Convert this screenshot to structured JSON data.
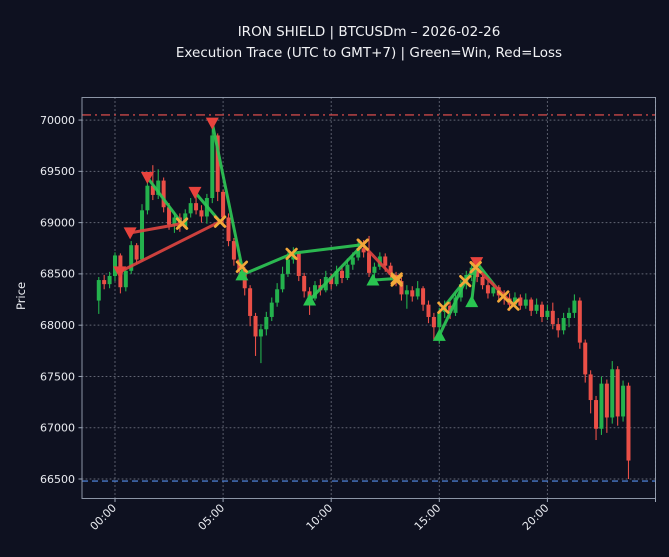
{
  "header": {
    "title": "IRON SHIELD | BTCUSDm – 2026-02-26",
    "subtitle": "Execution Trace (UTC to GMT+7) | Green=Win, Red=Loss"
  },
  "chart_data": {
    "type": "candlestick",
    "title": "IRON SHIELD | BTCUSDm – 2026-02-26",
    "subtitle": "Execution Trace (UTC to GMT+7) | Green=Win, Red=Loss",
    "ylabel": "Price",
    "xlabel": "",
    "xlim": [
      -1.526,
      25.0
    ],
    "ylim": [
      66310,
      70220
    ],
    "grid": true,
    "x_ticks": [
      {
        "t": 0,
        "label": "00:00"
      },
      {
        "t": 5,
        "label": "05:00"
      },
      {
        "t": 10,
        "label": "10:00"
      },
      {
        "t": 15,
        "label": "15:00"
      },
      {
        "t": 20,
        "label": "20:00"
      },
      {
        "t": 25,
        "label": ""
      }
    ],
    "y_ticks": [
      66500,
      67000,
      67500,
      68000,
      68500,
      69000,
      69500,
      70000
    ],
    "levels": [
      {
        "name": "session-high-line",
        "value": 70050,
        "color": "#d24a4a",
        "dash": "9 4 2 4"
      },
      {
        "name": "session-low-line",
        "value": 66480,
        "color": "#4d7fd2",
        "dash": "6 4"
      }
    ],
    "colors": {
      "background": "#0e1120",
      "candle_up": "#24b24d",
      "candle_down": "#ea4f47",
      "win_line": "#2ec655",
      "loss_line": "#dd4440",
      "buy_marker": "#29c550",
      "sell_marker": "#e8433d",
      "exit_marker": "#f3a83a",
      "grid": "#d7dce8",
      "spine": "#9aa4b5",
      "text": "#e9ebf0"
    },
    "candles": [
      [
        -0.75,
        68240,
        68470,
        68110,
        68440
      ],
      [
        -0.5,
        68440,
        68490,
        68350,
        68400
      ],
      [
        -0.25,
        68400,
        68520,
        68360,
        68480
      ],
      [
        0,
        68480,
        68710,
        68430,
        68680
      ],
      [
        0.25,
        68680,
        68700,
        68310,
        68370
      ],
      [
        0.5,
        68370,
        68560,
        68330,
        68530
      ],
      [
        0.75,
        68530,
        68820,
        68500,
        68780
      ],
      [
        1,
        68780,
        68800,
        68600,
        68640
      ],
      [
        1.25,
        68640,
        69180,
        68620,
        69120
      ],
      [
        1.5,
        69120,
        69400,
        69080,
        69360
      ],
      [
        1.75,
        69360,
        69560,
        69220,
        69270
      ],
      [
        2,
        69270,
        69520,
        69230,
        69410
      ],
      [
        2.25,
        69410,
        69440,
        69100,
        69150
      ],
      [
        2.5,
        69150,
        69190,
        68930,
        68980
      ],
      [
        2.75,
        68980,
        69100,
        68900,
        69050
      ],
      [
        3,
        69050,
        69090,
        68910,
        68960
      ],
      [
        3.25,
        68960,
        69130,
        68940,
        69090
      ],
      [
        3.5,
        69090,
        69240,
        69050,
        69190
      ],
      [
        3.75,
        69190,
        69260,
        69080,
        69120
      ],
      [
        4,
        69120,
        69170,
        69000,
        69060
      ],
      [
        4.25,
        69060,
        69280,
        68990,
        69240
      ],
      [
        4.5,
        69240,
        69920,
        69190,
        69850
      ],
      [
        4.75,
        69850,
        69870,
        69210,
        69300
      ],
      [
        5,
        69300,
        69320,
        68990,
        69050
      ],
      [
        5.25,
        69050,
        69090,
        68770,
        68820
      ],
      [
        5.5,
        68820,
        68850,
        68580,
        68640
      ],
      [
        5.75,
        68640,
        68690,
        68460,
        68540
      ],
      [
        6,
        68540,
        68570,
        68290,
        68360
      ],
      [
        6.25,
        68360,
        68390,
        67990,
        68090
      ],
      [
        6.5,
        68090,
        68120,
        67700,
        67890
      ],
      [
        6.75,
        67890,
        68010,
        67630,
        67960
      ],
      [
        7,
        67960,
        68130,
        67900,
        68080
      ],
      [
        7.25,
        68080,
        68270,
        68040,
        68220
      ],
      [
        7.5,
        68220,
        68410,
        68180,
        68350
      ],
      [
        7.75,
        68350,
        68570,
        68320,
        68500
      ],
      [
        8,
        68500,
        68710,
        68470,
        68640
      ],
      [
        8.25,
        68640,
        68760,
        68600,
        68700
      ],
      [
        8.5,
        68700,
        68720,
        68430,
        68480
      ],
      [
        8.75,
        68480,
        68510,
        68270,
        68330
      ],
      [
        9,
        68330,
        68370,
        68100,
        68260
      ],
      [
        9.25,
        68260,
        68430,
        68240,
        68390
      ],
      [
        9.5,
        68390,
        68450,
        68290,
        68340
      ],
      [
        9.75,
        68340,
        68530,
        68320,
        68470
      ],
      [
        10,
        68470,
        68500,
        68350,
        68400
      ],
      [
        10.25,
        68400,
        68580,
        68380,
        68530
      ],
      [
        10.5,
        68530,
        68570,
        68410,
        68460
      ],
      [
        10.75,
        68460,
        68650,
        68440,
        68590
      ],
      [
        11,
        68590,
        68710,
        68540,
        68660
      ],
      [
        11.25,
        68660,
        68810,
        68630,
        68750
      ],
      [
        11.5,
        68750,
        68830,
        68660,
        68710
      ],
      [
        11.75,
        68710,
        68870,
        68470,
        68510
      ],
      [
        12,
        68510,
        68610,
        68460,
        68570
      ],
      [
        12.25,
        68570,
        68710,
        68540,
        68670
      ],
      [
        12.5,
        68670,
        68700,
        68520,
        68580
      ],
      [
        12.75,
        68580,
        68610,
        68440,
        68490
      ],
      [
        13,
        68490,
        68520,
        68380,
        68430
      ],
      [
        13.25,
        68430,
        68460,
        68240,
        68300
      ],
      [
        13.5,
        68300,
        68390,
        68160,
        68340
      ],
      [
        13.75,
        68340,
        68380,
        68230,
        68280
      ],
      [
        14,
        68280,
        68430,
        68250,
        68360
      ],
      [
        14.25,
        68360,
        68380,
        68140,
        68200
      ],
      [
        14.5,
        68200,
        68240,
        68020,
        68080
      ],
      [
        14.75,
        68080,
        68120,
        67850,
        67980
      ],
      [
        15,
        67980,
        68170,
        67820,
        68130
      ],
      [
        15.25,
        68130,
        68240,
        68070,
        68190
      ],
      [
        15.5,
        68190,
        68230,
        68060,
        68120
      ],
      [
        15.75,
        68120,
        68310,
        68090,
        68270
      ],
      [
        16,
        68270,
        68440,
        68230,
        68400
      ],
      [
        16.25,
        68400,
        68530,
        68350,
        68490
      ],
      [
        16.5,
        68490,
        68600,
        68430,
        68560
      ],
      [
        16.75,
        68560,
        68580,
        68420,
        68470
      ],
      [
        17,
        68470,
        68530,
        68350,
        68390
      ],
      [
        17.25,
        68390,
        68430,
        68260,
        68310
      ],
      [
        17.5,
        68310,
        68410,
        68280,
        68370
      ],
      [
        17.75,
        68370,
        68390,
        68240,
        68290
      ],
      [
        18,
        68290,
        68340,
        68200,
        68260
      ],
      [
        18.25,
        68260,
        68310,
        68140,
        68200
      ],
      [
        18.5,
        68200,
        68320,
        68170,
        68270
      ],
      [
        18.75,
        68270,
        68300,
        68150,
        68190
      ],
      [
        19,
        68190,
        68310,
        68160,
        68250
      ],
      [
        19.25,
        68250,
        68270,
        68090,
        68140
      ],
      [
        19.5,
        68140,
        68260,
        68110,
        68200
      ],
      [
        19.75,
        68200,
        68230,
        68030,
        68080
      ],
      [
        20,
        68080,
        68200,
        68050,
        68140
      ],
      [
        20.25,
        68140,
        68220,
        67960,
        68010
      ],
      [
        20.5,
        68010,
        68070,
        67880,
        67950
      ],
      [
        20.75,
        67950,
        68120,
        67910,
        68070
      ],
      [
        21,
        68070,
        68170,
        67980,
        68120
      ],
      [
        21.25,
        68120,
        68300,
        68070,
        68240
      ],
      [
        21.5,
        68240,
        68270,
        67770,
        67830
      ],
      [
        21.75,
        67830,
        67860,
        67440,
        67520
      ],
      [
        22,
        67520,
        67560,
        67140,
        67270
      ],
      [
        22.25,
        67270,
        67310,
        66880,
        66990
      ],
      [
        22.5,
        66990,
        67500,
        66930,
        67430
      ],
      [
        22.75,
        67430,
        67470,
        66950,
        67100
      ],
      [
        23,
        67100,
        67650,
        67040,
        67570
      ],
      [
        23.25,
        67570,
        67600,
        67020,
        67110
      ],
      [
        23.5,
        67110,
        67460,
        67060,
        67410
      ],
      [
        23.75,
        67410,
        67440,
        66500,
        66680
      ]
    ],
    "trades": [
      {
        "side": "sell",
        "result": "loss",
        "entry": {
          "t": 0.22,
          "p": 68520,
          "marker": "triangle"
        },
        "exit": {
          "t": 4.86,
          "p": 69010
        }
      },
      {
        "side": "sell",
        "result": "loss",
        "entry": {
          "t": 0.7,
          "p": 68900,
          "marker": "triangle"
        },
        "exit": {
          "t": 3.1,
          "p": 68990
        }
      },
      {
        "side": "sell",
        "result": "win",
        "entry": {
          "t": 1.5,
          "p": 69440,
          "marker": "triangle"
        },
        "exit": {
          "t": 3.1,
          "p": 68990
        }
      },
      {
        "side": "sell",
        "result": "win",
        "entry": {
          "t": 3.7,
          "p": 69295,
          "marker": "triangle"
        },
        "exit": {
          "t": 4.86,
          "p": 69010
        }
      },
      {
        "side": "sell",
        "result": "win",
        "entry": {
          "t": 4.5,
          "p": 69970,
          "marker": "triangle"
        },
        "exit": {
          "t": 5.87,
          "p": 68570
        }
      },
      {
        "side": "buy",
        "result": "win",
        "entry": {
          "t": 5.87,
          "p": 68490,
          "marker": "triangle"
        },
        "exit": {
          "t": 8.17,
          "p": 68695
        }
      },
      {
        "side": "buy",
        "result": "win",
        "entry": {
          "t": 8.17,
          "p": 68700,
          "marker": "none"
        },
        "exit": {
          "t": 11.46,
          "p": 68785
        }
      },
      {
        "side": "buy",
        "result": "win",
        "entry": {
          "t": 9.0,
          "p": 68245,
          "marker": "triangle"
        },
        "exit": {
          "t": 11.46,
          "p": 68785
        }
      },
      {
        "side": "buy",
        "result": "loss",
        "entry": {
          "t": 11.46,
          "p": 68785,
          "marker": "none"
        },
        "exit": {
          "t": 13.03,
          "p": 68435
        }
      },
      {
        "side": "buy",
        "result": "win",
        "entry": {
          "t": 11.93,
          "p": 68440,
          "marker": "triangle"
        },
        "exit": {
          "t": 13.03,
          "p": 68455
        }
      },
      {
        "side": "buy",
        "result": "win",
        "entry": {
          "t": 15.0,
          "p": 67900,
          "marker": "triangle"
        },
        "exit": {
          "t": 16.2,
          "p": 68430
        }
      },
      {
        "side": "buy",
        "result": "win",
        "entry": {
          "t": 15.19,
          "p": 68170,
          "marker": "x"
        },
        "exit": {
          "t": 16.68,
          "p": 68565
        }
      },
      {
        "side": "buy",
        "result": "win",
        "entry": {
          "t": 16.5,
          "p": 68230,
          "marker": "triangle"
        },
        "exit": {
          "t": 16.68,
          "p": 68565
        }
      },
      {
        "side": "sell",
        "result": "win",
        "entry": {
          "t": 16.73,
          "p": 68610,
          "marker": "triangle"
        },
        "exit": {
          "t": 17.96,
          "p": 68280
        }
      },
      {
        "side": "buy",
        "result": "loss",
        "entry": {
          "t": 16.76,
          "p": 68550,
          "marker": "none"
        },
        "exit": {
          "t": 18.43,
          "p": 68200
        }
      }
    ]
  }
}
